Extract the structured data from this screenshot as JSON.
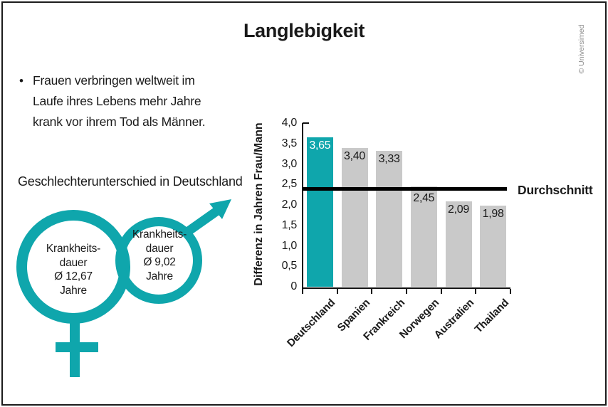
{
  "title": "Langlebigkeit",
  "copyright": "© Universimed",
  "intro": {
    "bullet": "•",
    "lines": [
      "Frauen verbringen weltweit im",
      "Laufe ihres Lebens mehr Jahre",
      "krank vor ihrem Tod als Männer."
    ]
  },
  "subtitle": "Geschlechterunterschied in Deutschland",
  "female_symbol": {
    "label_lines": [
      "Krankheits-",
      "dauer",
      "Ø 12,67",
      "Jahre"
    ]
  },
  "male_symbol": {
    "label_lines": [
      "Krankheits-",
      "dauer",
      "Ø 9,02",
      "Jahre"
    ]
  },
  "colors": {
    "teal": "#0fa6ac",
    "bar_gray": "#c9c9c9",
    "text": "#1a1a1a",
    "average_line": "#000000",
    "copyright_gray": "#8c8c8c"
  },
  "chart_data": {
    "type": "bar",
    "categories": [
      "Deutschland",
      "Spanien",
      "Frankreich",
      "Norwegen",
      "Australien",
      "Thailand"
    ],
    "values": [
      3.65,
      3.4,
      3.33,
      2.45,
      2.09,
      1.98
    ],
    "value_labels": [
      "3,65",
      "3,40",
      "3,33",
      "2,45",
      "2,09",
      "1,98"
    ],
    "highlight_category": "Deutschland",
    "ylabel": "Differenz in Jahren Frau/Mann",
    "xlabel": "",
    "ylim": [
      0,
      4
    ],
    "ytick_step": 0.5,
    "ytick_labels": [
      "4,0",
      "3,5",
      "3,0",
      "2,5",
      "2,0",
      "1,5",
      "1,0",
      "0,5",
      "0"
    ],
    "average_line": {
      "value": 2.4,
      "label": "Durchschnitt"
    },
    "grid": false,
    "legend": null
  }
}
